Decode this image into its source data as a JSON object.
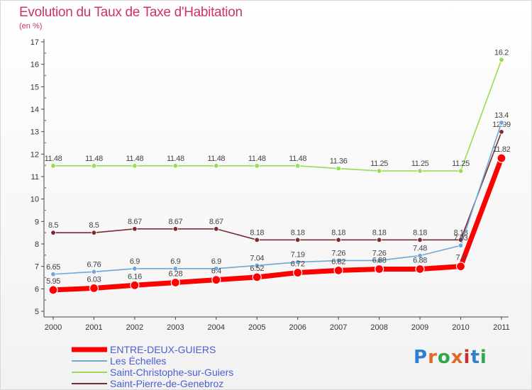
{
  "title": "Evolution du Taux de Taxe d'Habitation",
  "subtitle": "(en %)",
  "logo": {
    "text": "Proxiti",
    "letter_colors": [
      "#2f7fd1",
      "#e06a2a",
      "#2ea84a",
      "#e06a2a",
      "#c2302f",
      "#2f7fd1",
      "#2ea84a"
    ]
  },
  "chart_data": {
    "type": "line",
    "x": [
      "2000",
      "2001",
      "2002",
      "2003",
      "2004",
      "2005",
      "2006",
      "2007",
      "2008",
      "2009",
      "2010",
      "2011"
    ],
    "ylim": [
      5,
      17
    ],
    "yticks": [
      5,
      6,
      7,
      8,
      9,
      10,
      11,
      12,
      13,
      14,
      15,
      16,
      17
    ],
    "series": [
      {
        "name": "Saint-Christophe-sur-Guiers",
        "color": "#99dd55",
        "values": [
          11.48,
          11.48,
          11.48,
          11.48,
          11.48,
          11.48,
          11.48,
          11.36,
          11.25,
          11.25,
          11.25,
          16.2
        ],
        "labels": [
          "11.48",
          "11.48",
          "11.48",
          "11.48",
          "11.48",
          "11.48",
          "11.48",
          "11.36",
          "11.25",
          "11.25",
          "11.25",
          "16.2"
        ]
      },
      {
        "name": "Saint-Pierre-de-Genebroz",
        "color": "#7a2b33",
        "values": [
          8.5,
          8.5,
          8.67,
          8.67,
          8.67,
          8.18,
          8.18,
          8.18,
          8.18,
          8.18,
          8.18,
          12.99
        ],
        "labels": [
          "8.5",
          "8.5",
          "8.67",
          "8.67",
          "8.67",
          "8.18",
          "8.18",
          "8.18",
          "8.18",
          "8.18",
          "8.18",
          "12.99"
        ]
      },
      {
        "name": "Les Échelles",
        "color": "#6fa7d8",
        "values": [
          6.65,
          6.76,
          6.9,
          6.9,
          6.9,
          7.04,
          7.19,
          7.26,
          7.26,
          7.48,
          7.93,
          13.4
        ],
        "labels": [
          "6.65",
          "6.76",
          "6.9",
          "6.9",
          "6.9",
          "7.04",
          "7.19",
          "7.26",
          "7.26",
          "7.48",
          "7.93",
          "13.4"
        ]
      },
      {
        "name": "ENTRE-DEUX-GUIERS",
        "color": "#ff0000",
        "values": [
          5.95,
          6.03,
          6.16,
          6.28,
          6.4,
          6.52,
          6.72,
          6.82,
          6.88,
          6.88,
          7.0,
          11.82
        ],
        "labels": [
          "5.95",
          "6.03",
          "6.16",
          "6.28",
          "6.4",
          "6.52",
          "6.72",
          "6.82",
          "6.88",
          "6.88",
          "7.0",
          "11.82"
        ]
      }
    ],
    "legend": [
      {
        "name": "ENTRE-DEUX-GUIERS",
        "color": "#ff0000"
      },
      {
        "name": "Les Échelles",
        "color": "#6fa7d8"
      },
      {
        "name": "Saint-Christophe-sur-Guiers",
        "color": "#99dd55"
      },
      {
        "name": "Saint-Pierre-de-Genebroz",
        "color": "#7a2b33"
      }
    ],
    "legend_position": "bottom-left",
    "grid": false
  }
}
